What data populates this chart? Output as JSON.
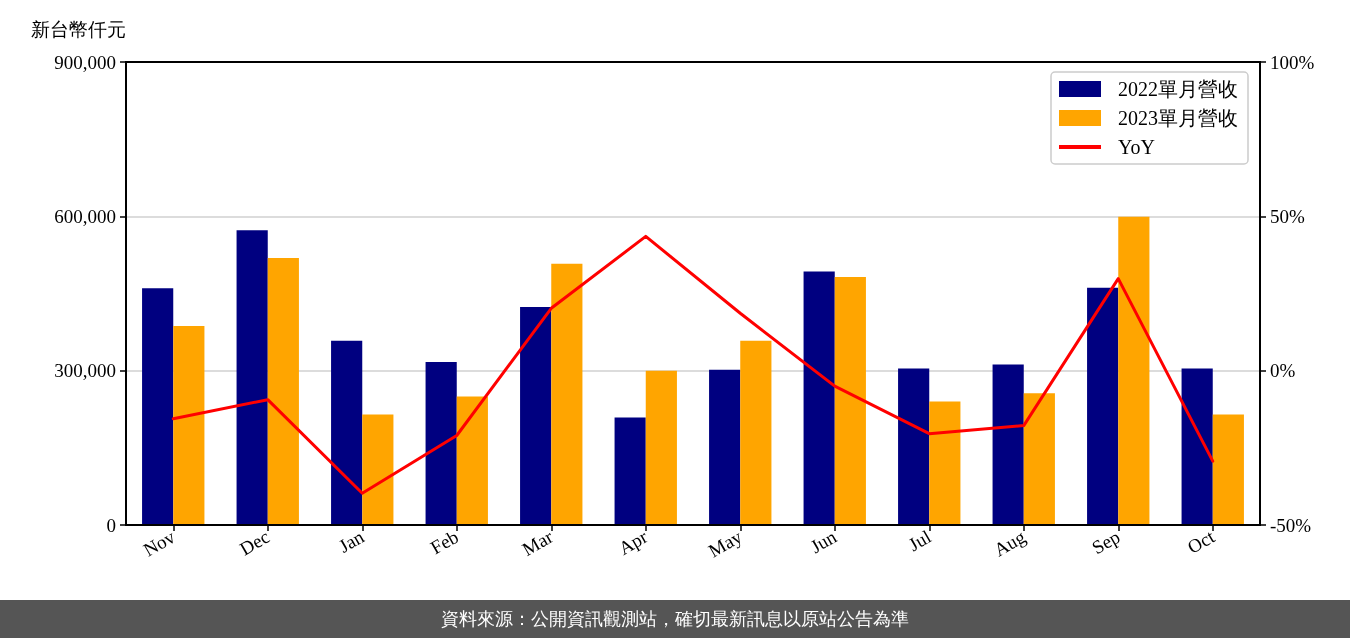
{
  "chart_data": {
    "type": "bar",
    "ylabel": "新台幣仟元",
    "annotations": [
      "資料來源：公開資訊觀測站，確切最新訊息以原站公告為準"
    ],
    "categories": [
      "Nov",
      "Dec",
      "Jan",
      "Feb",
      "Mar",
      "Apr",
      "May",
      "Jun",
      "Jul",
      "Aug",
      "Sep",
      "Oct"
    ],
    "series": [
      {
        "name": "2022單月營收",
        "color": "#000080",
        "values": [
          460000,
          573000,
          358000,
          317000,
          424000,
          209000,
          302000,
          493000,
          304000,
          312000,
          461000,
          304000
        ]
      },
      {
        "name": "2023單月營收",
        "color": "#ffa500",
        "values": [
          387000,
          519000,
          215000,
          250000,
          508000,
          300000,
          358000,
          482000,
          240000,
          256000,
          599000,
          215000
        ]
      },
      {
        "name": "YoY",
        "type": "line",
        "axis": "y2",
        "color": "#ff0000",
        "values": [
          -15.6,
          -9.4,
          -39.7,
          -21,
          20.2,
          43.5,
          18.6,
          -5,
          -20.4,
          -17.8,
          29.8,
          -29.3
        ]
      }
    ],
    "ylim": [
      0,
      900000
    ],
    "yticks": [
      {
        "value": 0,
        "label": "0"
      },
      {
        "value": 300000,
        "label": "300,000"
      },
      {
        "value": 600000,
        "label": "600,000"
      },
      {
        "value": 900000,
        "label": "900,000"
      }
    ],
    "y2lim": [
      -50,
      100
    ],
    "y2ticks": [
      {
        "value": -50,
        "label": "-50%"
      },
      {
        "value": 0,
        "label": "0%"
      },
      {
        "value": 50,
        "label": "50%"
      },
      {
        "value": 100,
        "label": "100%"
      }
    ],
    "grid": "y",
    "legend": "top right",
    "line_style": "solid"
  }
}
